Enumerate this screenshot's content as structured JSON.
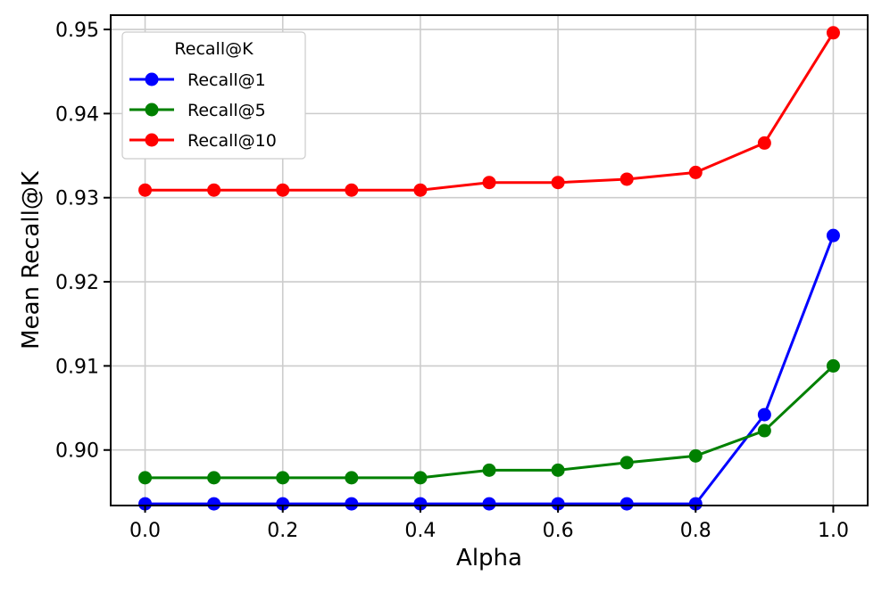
{
  "chart_data": {
    "type": "line",
    "xlabel": "Alpha",
    "ylabel": "Mean Recall@K",
    "xlim": [
      -0.05,
      1.05
    ],
    "ylim": [
      0.8934,
      0.9517
    ],
    "xticks": [
      0.0,
      0.2,
      0.4,
      0.6,
      0.8,
      1.0
    ],
    "xtick_labels": [
      "0.0",
      "0.2",
      "0.4",
      "0.6",
      "0.8",
      "1.0"
    ],
    "yticks": [
      0.9,
      0.91,
      0.92,
      0.93,
      0.94,
      0.95
    ],
    "ytick_labels": [
      "0.90",
      "0.91",
      "0.92",
      "0.93",
      "0.94",
      "0.95"
    ],
    "grid": true,
    "legend": {
      "title": "Recall@K",
      "placement": "top-left"
    },
    "x": [
      0.0,
      0.1,
      0.2,
      0.3,
      0.4,
      0.5,
      0.6,
      0.7,
      0.8,
      0.9,
      1.0
    ],
    "series": [
      {
        "name": "Recall@1",
        "color": "#0000ff",
        "values": [
          0.8936,
          0.8936,
          0.8936,
          0.8936,
          0.8936,
          0.8936,
          0.8936,
          0.8936,
          0.8936,
          0.9042,
          0.9255
        ]
      },
      {
        "name": "Recall@5",
        "color": "#008000",
        "values": [
          0.8967,
          0.8967,
          0.8967,
          0.8967,
          0.8967,
          0.8976,
          0.8976,
          0.8985,
          0.8993,
          0.9023,
          0.91
        ]
      },
      {
        "name": "Recall@10",
        "color": "#ff0000",
        "values": [
          0.9309,
          0.9309,
          0.9309,
          0.9309,
          0.9309,
          0.9318,
          0.9318,
          0.9322,
          0.933,
          0.9365,
          0.9496
        ]
      }
    ]
  }
}
